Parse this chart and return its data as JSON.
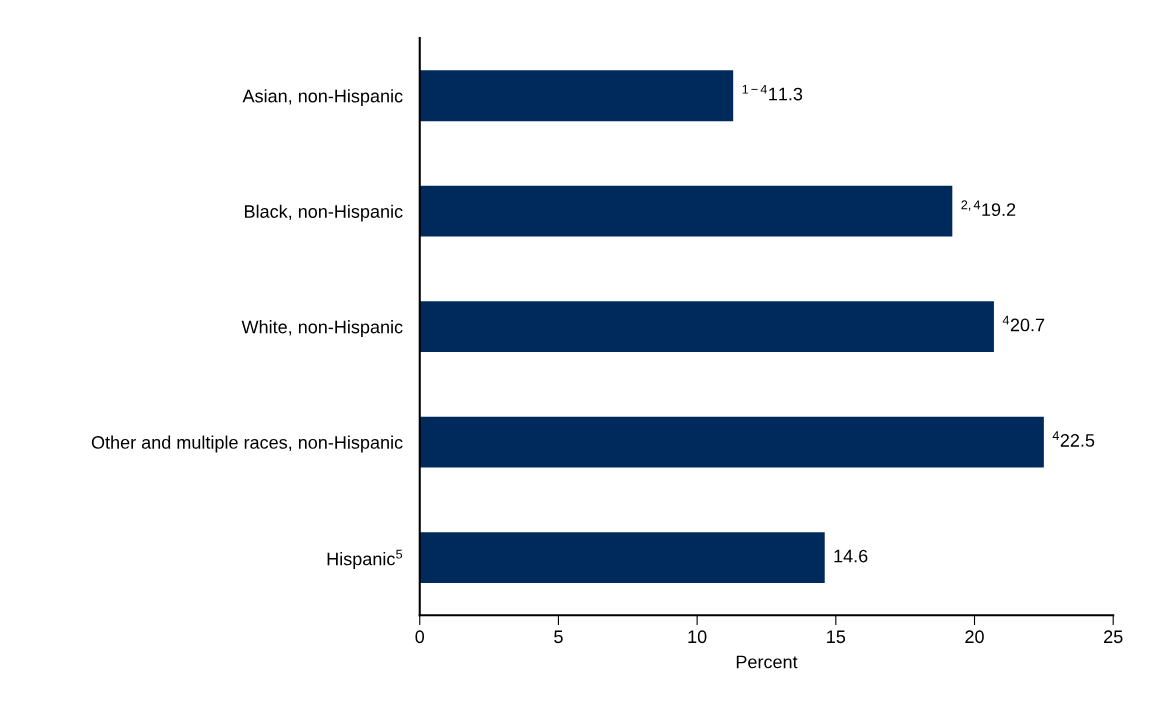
{
  "chart_data": {
    "type": "bar",
    "orientation": "horizontal",
    "xlabel": "Percent",
    "categories": [
      "Asian, non-Hispanic",
      "Black, non-Hispanic",
      "White, non-Hispanic",
      "Other and multiple races, non-Hispanic",
      "Hispanic$^{5}$"
    ],
    "values": [
      11.3,
      19.2,
      20.7,
      22.5,
      14.6
    ],
    "value_labels": [
      "$^{1−4}$11.3",
      "$^{2,4}$19.2",
      "$^{4}$20.7",
      "$^{4}$22.5",
      "14.6"
    ],
    "color": "#002a5c",
    "xlim": [
      0,
      25
    ],
    "xticks": [
      0,
      5,
      10,
      15,
      20,
      25
    ],
    "grid": false
  }
}
